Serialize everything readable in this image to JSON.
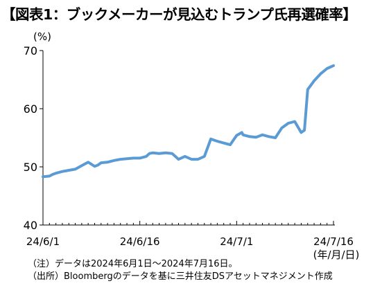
{
  "title": "【図表1：ブックメーカーが見込むトランプ氏再選確率】",
  "notes": [
    "（注）データは2024年6月1日～2024年7月16日。",
    "（出所）Bloombergのデータを基に三井住友DSアセットマネジメント作成"
  ],
  "colors": {
    "line": "#5b9bd5",
    "axis": "#000000"
  },
  "chart_data": {
    "type": "line",
    "title": "",
    "xlabel": "(年/月/日)",
    "ylabel": "(%)",
    "ylim": [
      40,
      70
    ],
    "yticks": [
      40,
      50,
      60,
      70
    ],
    "xticks": [
      {
        "x": 0,
        "label": "24/6/1"
      },
      {
        "x": 15,
        "label": "24/6/16"
      },
      {
        "x": 30,
        "label": "24/7/1"
      },
      {
        "x": 45,
        "label": "24/7/16"
      }
    ],
    "x_unit": "days since 2024-06-01",
    "x": [
      0,
      1,
      1.5,
      2,
      3,
      3.5,
      4,
      5,
      6,
      6.5,
      7,
      8,
      8.5,
      9,
      10,
      11,
      12,
      13,
      14,
      15,
      16,
      16.5,
      17,
      18,
      19,
      20,
      21,
      22,
      23,
      24,
      25,
      26,
      26.5,
      27,
      28,
      29,
      30,
      30.8,
      31,
      32,
      33,
      34,
      35,
      36,
      37,
      38,
      39,
      40,
      40.5,
      41,
      42,
      43,
      44,
      45
    ],
    "series": [
      {
        "name": "トランプ氏再選確率",
        "values": [
          48.3,
          48.4,
          48.7,
          48.9,
          49.2,
          49.3,
          49.4,
          49.6,
          50.2,
          50.5,
          50.8,
          50.1,
          50.3,
          50.7,
          50.8,
          51.1,
          51.3,
          51.4,
          51.5,
          51.5,
          51.8,
          52.3,
          52.4,
          52.3,
          52.4,
          52.3,
          51.3,
          51.8,
          51.3,
          51.3,
          51.8,
          54.8,
          54.6,
          54.4,
          54.1,
          53.8,
          55.4,
          55.9,
          55.5,
          55.2,
          55.1,
          55.5,
          55.2,
          55.0,
          56.7,
          57.5,
          57.8,
          55.9,
          56.3,
          63.3,
          64.8,
          66.0,
          66.9,
          67.4
        ]
      }
    ],
    "grid": false,
    "legend": "none"
  }
}
